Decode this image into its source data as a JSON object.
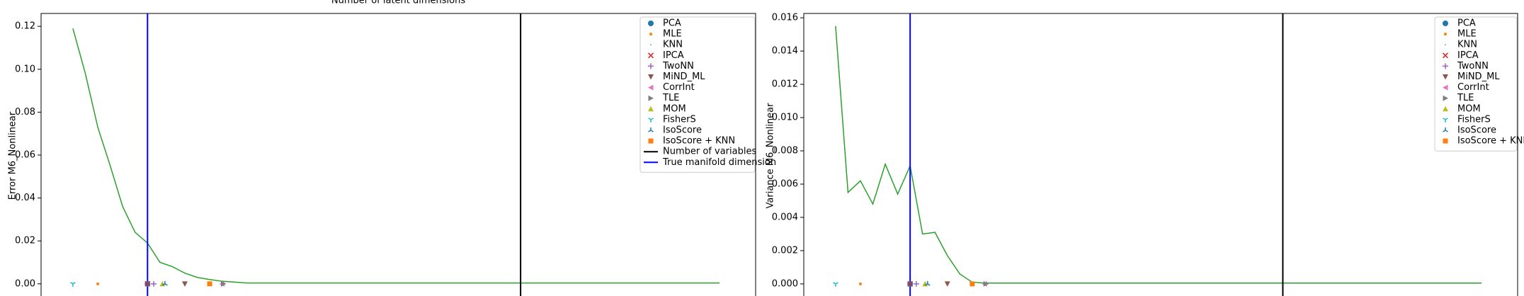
{
  "chart_data": [
    {
      "type": "line",
      "title": "Number of latent dimensions",
      "ylabel": "Error M6_Nonlinear",
      "xlim": [
        -1.56,
        55.9
      ],
      "ylim": [
        -0.006,
        0.126
      ],
      "yticks": [
        {
          "value": 0,
          "label": "0.00"
        },
        {
          "value": 0.02,
          "label": "0.02"
        },
        {
          "value": 0.04,
          "label": "0.04"
        },
        {
          "value": 0.06,
          "label": "0.06"
        },
        {
          "value": 0.08,
          "label": "0.08"
        },
        {
          "value": 0.1,
          "label": "0.10"
        },
        {
          "value": 0.12,
          "label": "0.12"
        }
      ],
      "line": {
        "color": "#2ca02c",
        "x": [
          1,
          2,
          3,
          4,
          5,
          6,
          7,
          8,
          9,
          10,
          11,
          12,
          13,
          14,
          15,
          16,
          17,
          18,
          19,
          20,
          21,
          22,
          23,
          24,
          25,
          26,
          27,
          28,
          29,
          30,
          31,
          32,
          33,
          34,
          35,
          36,
          37,
          38,
          39,
          40,
          41,
          42,
          43,
          44,
          45,
          46,
          47,
          48,
          49,
          50,
          51,
          52,
          53
        ],
        "values": [
          0.119,
          0.098,
          0.073,
          0.055,
          0.036,
          0.024,
          0.019,
          0.01,
          0.008,
          0.005,
          0.003,
          0.002,
          0.0012,
          0.0008,
          0.0004,
          0.0004,
          0.0004,
          0.0004,
          0.0004,
          0.0004,
          0.0004,
          0.0004,
          0.0004,
          0.0004,
          0.0004,
          0.0004,
          0.0004,
          0.0004,
          0.0004,
          0.0004,
          0.0004,
          0.0004,
          0.0004,
          0.0004,
          0.0004,
          0.0004,
          0.0004,
          0.0004,
          0.0004,
          0.0004,
          0.0004,
          0.0004,
          0.0004,
          0.0004,
          0.0004,
          0.0004,
          0.0004,
          0.0004,
          0.0004,
          0.0004,
          0.0004,
          0.0004,
          0.0004
        ]
      },
      "estimators": [
        {
          "name": "PCA",
          "marker": "circle",
          "color": "#1f77b4",
          "x": 7,
          "y": 0
        },
        {
          "name": "MLE",
          "marker": "point",
          "color": "#ff7f0e",
          "x": 3,
          "y": 0
        },
        {
          "name": "KNN",
          "marker": "pixel",
          "color": "#2ca02c",
          "x": 7,
          "y": 0
        },
        {
          "name": "IPCA",
          "marker": "x",
          "color": "#d62728",
          "x": 7,
          "y": 0
        },
        {
          "name": "TwoNN",
          "marker": "plus",
          "color": "#9467bd",
          "x": 7.5,
          "y": 0
        },
        {
          "name": "MiND_ML",
          "marker": "tri-down",
          "color": "#8c564b",
          "x": 10,
          "y": 0
        },
        {
          "name": "CorrInt",
          "marker": "tri-left",
          "color": "#e377c2",
          "x": 13,
          "y": 0
        },
        {
          "name": "TLE",
          "marker": "tri-right",
          "color": "#7f7f7f",
          "x": 13.1,
          "y": 0
        },
        {
          "name": "MOM",
          "marker": "tri-up",
          "color": "#bcbd22",
          "x": 8.2,
          "y": 0
        },
        {
          "name": "FisherS",
          "marker": "y-down",
          "color": "#17becf",
          "x": 1,
          "y": 0
        },
        {
          "name": "IsoScore",
          "marker": "y-up",
          "color": "#1f77b4",
          "x": 8.4,
          "y": 0
        },
        {
          "name": "IsoScore + KNN",
          "marker": "square",
          "color": "#ff7f0e",
          "x": 12,
          "y": 0
        }
      ],
      "vlines": [
        {
          "name": "Number of variables",
          "x": 37,
          "color": "#000000"
        },
        {
          "name": "True manifold dimension",
          "x": 7,
          "color": "#0000ff"
        }
      ],
      "vlines_in_legend": true
    },
    {
      "type": "line",
      "ylabel": "Variance M6_Nonlinear",
      "xlim": [
        -1.56,
        55.9
      ],
      "ylim": [
        -0.00077,
        0.01626
      ],
      "yticks": [
        {
          "value": 0,
          "label": "0.000"
        },
        {
          "value": 0.002,
          "label": "0.002"
        },
        {
          "value": 0.004,
          "label": "0.004"
        },
        {
          "value": 0.006,
          "label": "0.006"
        },
        {
          "value": 0.008,
          "label": "0.008"
        },
        {
          "value": 0.01,
          "label": "0.010"
        },
        {
          "value": 0.012,
          "label": "0.012"
        },
        {
          "value": 0.014,
          "label": "0.014"
        },
        {
          "value": 0.016,
          "label": "0.016"
        }
      ],
      "line": {
        "color": "#2ca02c",
        "x": [
          1,
          2,
          3,
          4,
          5,
          6,
          7,
          8,
          9,
          10,
          11,
          12,
          13,
          14,
          15,
          16,
          17,
          18,
          19,
          20,
          21,
          22,
          23,
          24,
          25,
          26,
          27,
          28,
          29,
          30,
          31,
          32,
          33,
          34,
          35,
          36,
          37,
          38,
          39,
          40,
          41,
          42,
          43,
          44,
          45,
          46,
          47,
          48,
          49,
          50,
          51,
          52,
          53
        ],
        "values": [
          0.0155,
          0.0055,
          0.0062,
          0.0048,
          0.0072,
          0.0054,
          0.0071,
          0.003,
          0.0031,
          0.0017,
          0.0006,
          0.0001,
          5e-05,
          5e-05,
          5e-05,
          5e-05,
          5e-05,
          5e-05,
          5e-05,
          5e-05,
          5e-05,
          5e-05,
          5e-05,
          5e-05,
          5e-05,
          5e-05,
          5e-05,
          5e-05,
          5e-05,
          5e-05,
          5e-05,
          5e-05,
          5e-05,
          5e-05,
          5e-05,
          5e-05,
          5e-05,
          5e-05,
          5e-05,
          5e-05,
          5e-05,
          5e-05,
          5e-05,
          5e-05,
          5e-05,
          5e-05,
          5e-05,
          5e-05,
          5e-05,
          5e-05,
          5e-05,
          5e-05,
          5e-05
        ]
      },
      "estimators": [
        {
          "name": "PCA",
          "marker": "circle",
          "color": "#1f77b4",
          "x": 7,
          "y": 0
        },
        {
          "name": "MLE",
          "marker": "point",
          "color": "#ff7f0e",
          "x": 3,
          "y": 0
        },
        {
          "name": "KNN",
          "marker": "pixel",
          "color": "#2ca02c",
          "x": 7,
          "y": 0
        },
        {
          "name": "IPCA",
          "marker": "x",
          "color": "#d62728",
          "x": 7,
          "y": 0
        },
        {
          "name": "TwoNN",
          "marker": "plus",
          "color": "#9467bd",
          "x": 7.5,
          "y": 0
        },
        {
          "name": "MiND_ML",
          "marker": "tri-down",
          "color": "#8c564b",
          "x": 10,
          "y": 0
        },
        {
          "name": "CorrInt",
          "marker": "tri-left",
          "color": "#e377c2",
          "x": 13,
          "y": 0
        },
        {
          "name": "TLE",
          "marker": "tri-right",
          "color": "#7f7f7f",
          "x": 13.1,
          "y": 0
        },
        {
          "name": "MOM",
          "marker": "tri-up",
          "color": "#bcbd22",
          "x": 8.2,
          "y": 0
        },
        {
          "name": "FisherS",
          "marker": "y-down",
          "color": "#17becf",
          "x": 1,
          "y": 0
        },
        {
          "name": "IsoScore",
          "marker": "y-up",
          "color": "#1f77b4",
          "x": 8.4,
          "y": 0
        },
        {
          "name": "IsoScore + KNN",
          "marker": "square",
          "color": "#ff7f0e",
          "x": 12,
          "y": 0
        }
      ],
      "vlines": [
        {
          "name": "Number of variables",
          "x": 37,
          "color": "#000000"
        },
        {
          "name": "True manifold dimension",
          "x": 7,
          "color": "#0000ff"
        }
      ],
      "vlines_in_legend": false
    }
  ]
}
